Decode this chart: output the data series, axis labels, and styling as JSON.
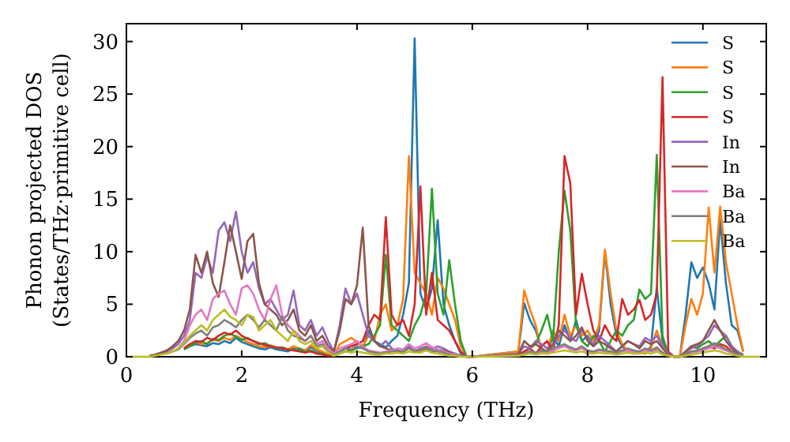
{
  "chart_data": {
    "type": "line",
    "xlabel": "Frequency (THz)",
    "ylabel": "Phonon projected DOS\n(States/THz·primitive cell)",
    "xlim": [
      0,
      11.1
    ],
    "ylim": [
      0,
      31.7
    ],
    "xticks": [
      0,
      2,
      4,
      6,
      8,
      10
    ],
    "yticks": [
      0,
      5,
      10,
      15,
      20,
      25,
      30
    ],
    "legend": "top right",
    "grid": false,
    "line_style": "solid",
    "x": [
      0,
      0.1,
      0.2,
      0.3,
      0.4,
      0.5,
      0.6,
      0.7,
      0.8,
      0.9,
      1,
      1.1,
      1.2,
      1.3,
      1.4,
      1.5,
      1.6,
      1.7,
      1.8,
      1.9,
      2,
      2.1,
      2.2,
      2.3,
      2.4,
      2.5,
      2.6,
      2.7,
      2.8,
      2.9,
      3,
      3.1,
      3.2,
      3.3,
      3.4,
      3.5,
      3.6,
      3.7,
      3.8,
      3.9,
      4,
      4.1,
      4.2,
      4.3,
      4.4,
      4.5,
      4.6,
      4.7,
      4.8,
      4.9,
      5,
      5.1,
      5.2,
      5.3,
      5.4,
      5.5,
      5.6,
      5.7,
      5.8,
      5.9,
      6,
      6.8,
      6.9,
      7,
      7.1,
      7.2,
      7.3,
      7.4,
      7.5,
      7.6,
      7.7,
      7.8,
      7.9,
      8,
      8.1,
      8.2,
      8.3,
      8.4,
      8.5,
      8.6,
      8.7,
      8.8,
      8.9,
      9,
      9.1,
      9.2,
      9.3,
      9.4,
      9.5,
      9.6,
      9.7,
      9.8,
      9.9,
      10,
      10.1,
      10.2,
      10.3,
      10.4,
      10.5,
      10.6,
      10.7,
      10.8,
      11
    ],
    "series": [
      {
        "name": "S",
        "color": "#1f77b4",
        "values": [
          null,
          null,
          null,
          null,
          null,
          null,
          null,
          null,
          null,
          null,
          0.7,
          1.0,
          1.2,
          1.1,
          1.0,
          1.3,
          1.2,
          1.5,
          1.3,
          1.8,
          1.4,
          1.2,
          1.0,
          0.8,
          0.7,
          0.9,
          0.7,
          0.6,
          0.5,
          0.8,
          0.6,
          0.5,
          0.9,
          0.6,
          0.4,
          0.2,
          0.1,
          0.5,
          0.8,
          0.6,
          1.0,
          0.8,
          2.5,
          1.5,
          1.2,
          0.9,
          1.5,
          2.0,
          4.0,
          7.0,
          30.3,
          6.0,
          4.5,
          6.5,
          13.0,
          5.0,
          3.0,
          1.5,
          0.3,
          0,
          0,
          0.5,
          5.1,
          3.5,
          2.5,
          0.8,
          0.3,
          2.0,
          1.0,
          3.0,
          1.5,
          3.5,
          1.5,
          2.0,
          1.0,
          2.5,
          10.0,
          5.0,
          2.0,
          1.0,
          0.5,
          0.3,
          0.4,
          0.3,
          1.0,
          6.6,
          1.5,
          0.3,
          0,
          0,
          4.0,
          9.0,
          7.5,
          8.5,
          7.0,
          4.5,
          13.0,
          7.0,
          3.0,
          2.5,
          0.5,
          null,
          null
        ]
      },
      {
        "name": "S",
        "color": "#ff7f0e",
        "values": [
          null,
          null,
          null,
          null,
          null,
          null,
          null,
          null,
          null,
          null,
          null,
          1.1,
          1.4,
          1.2,
          1.3,
          1.6,
          1.5,
          1.8,
          1.6,
          2.0,
          1.7,
          1.4,
          1.2,
          1.0,
          0.9,
          1.1,
          0.9,
          0.8,
          0.7,
          1.0,
          0.8,
          0.6,
          1.1,
          0.7,
          0.5,
          0.2,
          0.1,
          1.2,
          1.5,
          1.8,
          1.4,
          1.0,
          2.0,
          1.5,
          4.0,
          5.0,
          2.5,
          3.0,
          5.5,
          19.1,
          8.0,
          7.0,
          6.0,
          4.0,
          7.5,
          6.5,
          5.0,
          3.5,
          1.0,
          0,
          0,
          0.5,
          6.3,
          4.5,
          3.0,
          0.5,
          0.5,
          2.5,
          1.5,
          4.0,
          2.0,
          3.0,
          2.0,
          2.5,
          1.5,
          3.0,
          10.2,
          6.0,
          2.5,
          1.2,
          0.5,
          0.3,
          0.4,
          0.3,
          0.8,
          2.5,
          1.0,
          0.3,
          0,
          0,
          3.0,
          5.5,
          4.0,
          6.0,
          14.2,
          8.0,
          14.3,
          9.0,
          6.0,
          3.0,
          0.5,
          null,
          null
        ]
      },
      {
        "name": "S",
        "color": "#2ca02c",
        "values": [
          null,
          null,
          null,
          null,
          null,
          null,
          null,
          null,
          null,
          null,
          0.7,
          1.0,
          1.3,
          1.5,
          1.2,
          1.7,
          1.6,
          2.0,
          2.2,
          1.9,
          1.6,
          1.8,
          1.5,
          1.2,
          1.3,
          1.0,
          0.8,
          0.9,
          0.7,
          0.6,
          0.8,
          0.5,
          0.6,
          0.4,
          0.3,
          0.1,
          0.1,
          0.3,
          0.5,
          0.6,
          0.8,
          1.0,
          1.2,
          2.0,
          3.0,
          9.7,
          3.0,
          2.5,
          2.0,
          1.5,
          3.0,
          4.0,
          6.0,
          16.0,
          6.0,
          4.0,
          9.2,
          5.0,
          1.5,
          0,
          0,
          0.2,
          0.5,
          0.8,
          1.2,
          2.5,
          4.0,
          1.5,
          10.0,
          15.8,
          12.0,
          3.0,
          1.5,
          1.0,
          2.0,
          1.5,
          0.5,
          1.5,
          2.5,
          2.0,
          3.0,
          3.5,
          6.4,
          5.5,
          6.0,
          19.2,
          2.0,
          0.2,
          0,
          0,
          0.5,
          1.0,
          0.8,
          1.2,
          1.5,
          1.0,
          1.5,
          2.0,
          1.0,
          0.5,
          0.2,
          null,
          null
        ]
      },
      {
        "name": "S",
        "color": "#d62728",
        "values": [
          null,
          null,
          null,
          null,
          null,
          null,
          null,
          null,
          null,
          null,
          0.8,
          1.2,
          1.5,
          1.4,
          1.8,
          1.6,
          2.0,
          2.3,
          2.1,
          2.5,
          2.0,
          1.7,
          1.5,
          1.3,
          1.1,
          1.0,
          0.9,
          0.8,
          0.7,
          0.6,
          0.5,
          0.4,
          0.5,
          0.3,
          0.2,
          0.1,
          0.1,
          0.5,
          0.8,
          1.0,
          1.2,
          1.5,
          3.0,
          4.0,
          3.5,
          13.3,
          4.0,
          3.0,
          3.5,
          2.0,
          5.0,
          16.2,
          4.0,
          8.0,
          3.5,
          3.0,
          2.5,
          1.5,
          0.5,
          0,
          0,
          0.2,
          0.5,
          0.8,
          0.3,
          1.0,
          1.5,
          0.5,
          3.0,
          19.1,
          16.5,
          4.0,
          7.9,
          5.0,
          2.5,
          1.5,
          3.0,
          2.0,
          1.5,
          5.5,
          4.0,
          4.5,
          5.4,
          3.5,
          4.0,
          6.0,
          26.6,
          0.5,
          0,
          0,
          0.3,
          0.5,
          0.5,
          0.8,
          1.0,
          0.8,
          1.2,
          1.0,
          0.5,
          0.3,
          0.1,
          null,
          null
        ]
      },
      {
        "name": "In",
        "color": "#9467bd",
        "values": [
          null,
          null,
          null,
          null,
          null,
          null,
          0.3,
          0.5,
          0.8,
          1.2,
          2.0,
          3.5,
          8.0,
          7.5,
          9.5,
          8.0,
          12.0,
          12.8,
          11.0,
          13.8,
          10.0,
          8.0,
          9.0,
          6.5,
          5.0,
          5.5,
          4.5,
          3.5,
          4.0,
          6.3,
          3.0,
          2.5,
          3.5,
          2.0,
          2.8,
          1.5,
          0.5,
          3.0,
          6.5,
          5.0,
          6.0,
          4.0,
          2.0,
          1.5,
          1.0,
          1.5,
          0.8,
          0.5,
          0.5,
          1.0,
          0.5,
          0.8,
          1.0,
          0.7,
          1.0,
          0.8,
          0.5,
          0.3,
          0.1,
          0,
          0,
          0.3,
          1.0,
          0.8,
          1.5,
          1.2,
          0.8,
          1.0,
          2.0,
          2.5,
          1.8,
          1.5,
          2.5,
          1.8,
          1.2,
          2.0,
          1.5,
          1.0,
          0.5,
          1.0,
          1.5,
          1.2,
          1.0,
          1.8,
          1.5,
          2.0,
          1.0,
          0.3,
          0,
          0,
          0.5,
          0.8,
          1.0,
          1.5,
          2.0,
          3.0,
          2.5,
          2.0,
          1.0,
          0.5,
          0.1,
          null,
          null
        ]
      },
      {
        "name": "In",
        "color": "#8c564b",
        "values": [
          null,
          null,
          null,
          null,
          0.1,
          0.2,
          0.4,
          0.6,
          1.0,
          1.5,
          2.5,
          4.5,
          9.7,
          8.0,
          10.0,
          7.0,
          5.7,
          9.0,
          12.5,
          10.0,
          7.4,
          11.0,
          11.7,
          7.0,
          5.0,
          4.5,
          4.0,
          3.0,
          3.5,
          4.5,
          2.5,
          2.0,
          3.0,
          1.5,
          2.0,
          1.0,
          0.5,
          2.5,
          5.5,
          5.0,
          6.8,
          12.3,
          3.0,
          1.5,
          1.0,
          0.8,
          0.6,
          0.5,
          0.5,
          0.8,
          0.5,
          0.6,
          0.8,
          0.5,
          0.7,
          0.6,
          0.4,
          0.2,
          0.1,
          0,
          0,
          0.2,
          1.5,
          1.0,
          1.2,
          0.8,
          0.5,
          1.2,
          2.5,
          2.0,
          1.5,
          2.0,
          2.8,
          1.5,
          1.0,
          1.5,
          1.2,
          0.8,
          0.5,
          1.0,
          1.5,
          1.2,
          0.8,
          1.5,
          1.2,
          1.5,
          0.8,
          0.2,
          0,
          0,
          0.5,
          1.0,
          1.2,
          1.5,
          2.5,
          3.5,
          2.5,
          1.5,
          0.8,
          0.3,
          0.1,
          null,
          null
        ]
      },
      {
        "name": "Ba",
        "color": "#e377c2",
        "values": [
          null,
          null,
          null,
          null,
          null,
          null,
          null,
          0.3,
          0.5,
          0.8,
          1.5,
          3.0,
          4.0,
          4.5,
          3.5,
          5.5,
          6.0,
          6.3,
          5.0,
          4.0,
          6.5,
          6.8,
          6.0,
          4.5,
          3.5,
          5.5,
          6.8,
          4.0,
          3.0,
          2.5,
          2.0,
          1.5,
          2.0,
          1.2,
          1.5,
          0.8,
          0.3,
          0.8,
          1.0,
          1.2,
          1.5,
          1.0,
          0.6,
          0.5,
          0.4,
          0.5,
          0.6,
          0.8,
          0.7,
          1.2,
          0.8,
          1.0,
          1.3,
          0.9,
          0.7,
          0.5,
          0.3,
          0.2,
          0.1,
          0,
          0,
          0.1,
          0.3,
          0.4,
          0.3,
          0.5,
          0.4,
          0.6,
          0.8,
          1.0,
          0.7,
          0.6,
          0.8,
          0.5,
          0.4,
          0.6,
          0.5,
          0.4,
          0.3,
          0.5,
          0.6,
          0.5,
          0.4,
          0.6,
          0.5,
          0.7,
          0.3,
          0.1,
          0,
          0,
          0.2,
          0.4,
          0.5,
          0.6,
          0.8,
          1.0,
          0.8,
          0.6,
          0.4,
          0.2,
          0.1,
          null,
          null
        ]
      },
      {
        "name": "Ba",
        "color": "#7f7f7f",
        "values": [
          null,
          null,
          null,
          null,
          null,
          null,
          null,
          0.3,
          0.5,
          0.7,
          1.2,
          1.8,
          2.2,
          2.5,
          2.0,
          2.8,
          3.0,
          3.5,
          3.2,
          2.8,
          3.5,
          4.0,
          3.5,
          2.8,
          3.5,
          3.0,
          2.5,
          3.8,
          2.5,
          2.0,
          1.8,
          1.5,
          2.0,
          1.0,
          1.2,
          0.5,
          0.2,
          0.5,
          0.8,
          0.7,
          1.0,
          0.8,
          0.5,
          0.4,
          0.3,
          0.4,
          0.5,
          0.6,
          0.5,
          0.8,
          0.6,
          0.7,
          0.9,
          0.6,
          0.5,
          0.4,
          0.2,
          0.1,
          0.1,
          0,
          0,
          0.1,
          0.3,
          0.5,
          0.4,
          0.6,
          0.5,
          0.8,
          1.0,
          1.2,
          0.9,
          0.7,
          1.0,
          0.6,
          0.5,
          0.7,
          0.6,
          0.5,
          0.4,
          0.6,
          0.8,
          0.6,
          0.5,
          0.8,
          0.6,
          0.9,
          0.4,
          0.1,
          0,
          0,
          0.3,
          0.5,
          0.6,
          0.8,
          1.0,
          1.3,
          1.0,
          0.7,
          0.5,
          0.2,
          0.1,
          null,
          null
        ]
      },
      {
        "name": "Ba",
        "color": "#bcbd22",
        "values": [
          0,
          0,
          0,
          0,
          0,
          0.1,
          0.2,
          0.3,
          0.5,
          0.8,
          1.3,
          2.0,
          2.5,
          3.0,
          2.5,
          3.5,
          4.0,
          4.5,
          3.8,
          3.5,
          3.0,
          4.0,
          3.8,
          2.5,
          3.0,
          3.5,
          2.5,
          2.0,
          1.5,
          2.5,
          1.5,
          1.2,
          1.5,
          0.8,
          1.0,
          0.4,
          0.1,
          0.3,
          0.5,
          0.4,
          0.5,
          0.4,
          0.3,
          0.2,
          0.2,
          0.3,
          0.3,
          0.4,
          0.3,
          0.5,
          0.4,
          0.4,
          0.6,
          0.4,
          0.3,
          0.2,
          0.1,
          0.1,
          0,
          0,
          0,
          0.1,
          0.2,
          0.3,
          0.2,
          0.3,
          0.3,
          0.4,
          0.5,
          0.6,
          0.5,
          0.4,
          0.5,
          0.3,
          0.3,
          0.4,
          0.3,
          0.3,
          0.2,
          0.3,
          0.4,
          0.3,
          0.3,
          0.4,
          0.3,
          0.5,
          0.2,
          0.1,
          0,
          0,
          0.1,
          0.2,
          0.3,
          0.4,
          0.5,
          0.6,
          0.5,
          0.3,
          0.2,
          0.1,
          0,
          0,
          0
        ]
      }
    ]
  }
}
